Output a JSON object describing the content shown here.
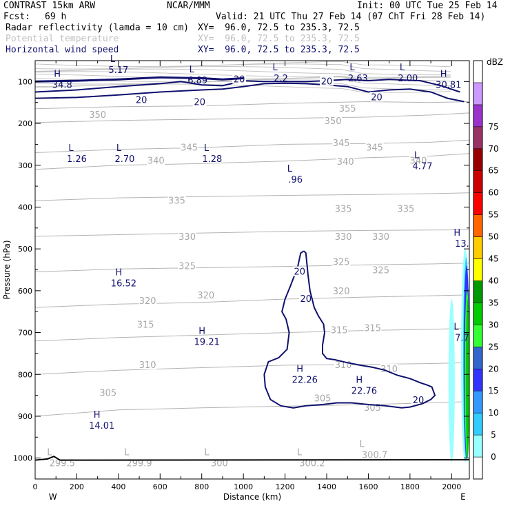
{
  "header": {
    "model": "CONTRAST 15km ARW",
    "org": "NCAR/MMM",
    "init": "Init: 00 UTC Tue 25 Feb 14",
    "fcst_label": "Fcst:",
    "fcst_value": "69 h",
    "valid": "Valid: 21 UTC Thu 27 Feb 14 (07 ChT Fri 28 Feb 14)",
    "fields": [
      {
        "name": "Radar reflectivity (lamda = 10 cm)",
        "xy": "XY=  96.0, 72.5 to 235.3, 72.5",
        "color": "#000000"
      },
      {
        "name": "Potential temperature",
        "xy": "XY=  96.0, 72.5 to 235.3, 72.5",
        "color": "#c0c0c0"
      },
      {
        "name": "Horizontal wind speed",
        "xy": "XY=  96.0, 72.5 to 235.3, 72.5",
        "color": "#10106e"
      }
    ]
  },
  "chart_data": {
    "type": "contour-cross-section",
    "xlabel": "Distance (km)",
    "ylabel": "Pressure (hPa)",
    "xlim": [
      0,
      2085
    ],
    "ylim": [
      1050,
      50
    ],
    "x_ticks": [
      0,
      200,
      400,
      600,
      800,
      1000,
      1200,
      1400,
      1600,
      1800,
      2000
    ],
    "y_ticks": [
      100,
      200,
      300,
      400,
      500,
      600,
      700,
      800,
      900,
      1000
    ],
    "endpoint_left": "W",
    "endpoint_right": "E",
    "colorbar": {
      "title": "dBZ",
      "levels": [
        "0",
        "5",
        "10",
        "15",
        "20",
        "25",
        "30",
        "35",
        "40",
        "45",
        "50",
        "55",
        "60",
        "65",
        "70",
        "75"
      ],
      "colors": [
        "#ffffff",
        "#99ffff",
        "#33ccff",
        "#3399ff",
        "#3333ff",
        "#3366cc",
        "#33ff33",
        "#00cc00",
        "#009900",
        "#ffff00",
        "#ffcc00",
        "#ff6600",
        "#ff0000",
        "#cc0000",
        "#990000",
        "#993366",
        "#9933cc",
        "#cc99ff",
        "#ffffff"
      ]
    },
    "theta_isentropes": [
      {
        "label": "355",
        "pts": [
          [
            0,
            165
          ],
          [
            400,
            160
          ],
          [
            800,
            158
          ],
          [
            1200,
            152
          ],
          [
            1600,
            148
          ],
          [
            1900,
            150
          ],
          [
            2085,
            148
          ]
        ],
        "label_at": [
          1500,
          165
        ]
      },
      {
        "label": "350",
        "pts": [
          [
            0,
            198
          ],
          [
            400,
            193
          ],
          [
            800,
            190
          ],
          [
            1200,
            188
          ],
          [
            1600,
            185
          ],
          [
            1900,
            180
          ],
          [
            2085,
            175
          ]
        ],
        "label_at": [
          300,
          180
        ]
      },
      {
        "label": "350",
        "pts": [],
        "label_at": [
          1430,
          195
        ]
      },
      {
        "label": "345",
        "pts": [
          [
            0,
            270
          ],
          [
            400,
            262
          ],
          [
            800,
            258
          ],
          [
            1200,
            250
          ],
          [
            1600,
            248
          ],
          [
            1900,
            245
          ],
          [
            2085,
            240
          ]
        ],
        "label_at": [
          740,
          258
        ]
      },
      {
        "label": "345",
        "pts": [],
        "label_at": [
          1470,
          248
        ]
      },
      {
        "label": "345",
        "pts": [],
        "label_at": [
          1630,
          258
        ]
      },
      {
        "label": "340",
        "pts": [
          [
            0,
            310
          ],
          [
            400,
            300
          ],
          [
            800,
            296
          ],
          [
            1200,
            290
          ],
          [
            1600,
            282
          ],
          [
            1900,
            278
          ],
          [
            2085,
            272
          ]
        ],
        "label_at": [
          580,
          290
        ]
      },
      {
        "label": "340",
        "pts": [],
        "label_at": [
          1490,
          292
        ]
      },
      {
        "label": "340",
        "pts": [],
        "label_at": [
          1840,
          290
        ]
      },
      {
        "label": "335",
        "pts": [
          [
            0,
            385
          ],
          [
            400,
            378
          ],
          [
            800,
            375
          ],
          [
            1200,
            372
          ],
          [
            1600,
            370
          ],
          [
            1900,
            368
          ],
          [
            2085,
            366
          ]
        ],
        "label_at": [
          680,
          385
        ]
      },
      {
        "label": "335",
        "pts": [],
        "label_at": [
          1480,
          405
        ]
      },
      {
        "label": "335",
        "pts": [],
        "label_at": [
          1780,
          405
        ]
      },
      {
        "label": "330",
        "pts": [
          [
            0,
            470
          ],
          [
            400,
            466
          ],
          [
            800,
            462
          ],
          [
            1200,
            458
          ],
          [
            1600,
            456
          ],
          [
            1900,
            455
          ],
          [
            2085,
            454
          ]
        ],
        "label_at": [
          730,
          472
        ]
      },
      {
        "label": "330",
        "pts": [],
        "label_at": [
          1480,
          472
        ]
      },
      {
        "label": "330",
        "pts": [],
        "label_at": [
          1660,
          472
        ]
      },
      {
        "label": "325",
        "pts": [
          [
            0,
            555
          ],
          [
            400,
            548
          ],
          [
            800,
            545
          ],
          [
            1200,
            542
          ],
          [
            1600,
            538
          ],
          [
            1900,
            536
          ],
          [
            2085,
            534
          ]
        ],
        "label_at": [
          730,
          542
        ]
      },
      {
        "label": "325",
        "pts": [],
        "label_at": [
          1470,
          532
        ]
      },
      {
        "label": "325",
        "pts": [],
        "label_at": [
          1660,
          552
        ]
      },
      {
        "label": "320",
        "pts": [
          [
            0,
            640
          ],
          [
            400,
            632
          ],
          [
            800,
            628
          ],
          [
            1200,
            620
          ],
          [
            1600,
            615
          ],
          [
            1900,
            612
          ],
          [
            2085,
            610
          ]
        ],
        "label_at": [
          540,
          625
        ]
      },
      {
        "label": "320",
        "pts": [],
        "label_at": [
          820,
          612
        ]
      },
      {
        "label": "320",
        "pts": [],
        "label_at": [
          1470,
          602
        ]
      },
      {
        "label": "315",
        "pts": [
          [
            0,
            720
          ],
          [
            400,
            712
          ],
          [
            800,
            706
          ],
          [
            1200,
            700
          ],
          [
            1600,
            695
          ],
          [
            1900,
            692
          ],
          [
            2085,
            690
          ]
        ],
        "label_at": [
          530,
          682
        ]
      },
      {
        "label": "315",
        "pts": [],
        "label_at": [
          1460,
          695
        ]
      },
      {
        "label": "315",
        "pts": [],
        "label_at": [
          1620,
          690
        ]
      },
      {
        "label": "310",
        "pts": [
          [
            0,
            800
          ],
          [
            400,
            790
          ],
          [
            800,
            784
          ],
          [
            1200,
            778
          ],
          [
            1600,
            776
          ],
          [
            1900,
            774
          ],
          [
            2085,
            772
          ]
        ],
        "label_at": [
          540,
          778
        ]
      },
      {
        "label": "310",
        "pts": [],
        "label_at": [
          1480,
          778
        ]
      },
      {
        "label": "310",
        "pts": [],
        "label_at": [
          1700,
          788
        ]
      },
      {
        "label": "305",
        "pts": [
          [
            0,
            900
          ],
          [
            400,
            885
          ],
          [
            800,
            880
          ],
          [
            1200,
            876
          ],
          [
            1600,
            872
          ],
          [
            1900,
            868
          ],
          [
            2085,
            865
          ]
        ],
        "label_at": [
          350,
          845
        ]
      },
      {
        "label": "305",
        "pts": [],
        "label_at": [
          1380,
          858
        ]
      },
      {
        "label": "305",
        "pts": [],
        "label_at": [
          1620,
          880
        ]
      }
    ],
    "theta_extrema": [
      {
        "label": "L",
        "value": "299.5",
        "x": 130,
        "p": 1000
      },
      {
        "label": "L",
        "value": "299.9",
        "x": 500,
        "p": 1000
      },
      {
        "label": "L",
        "value": "300",
        "x": 885,
        "p": 1000
      },
      {
        "label": "L",
        "value": "300.2",
        "x": 1330,
        "p": 1000
      },
      {
        "label": "L",
        "value": "300.7",
        "x": 1630,
        "p": 980
      }
    ],
    "wind_extrema": [
      {
        "label": "H",
        "value": "34.8",
        "x": 130,
        "p": 95
      },
      {
        "label": "L",
        "value": "5.17",
        "x": 400,
        "p": 60
      },
      {
        "label": "L",
        "value": "6.89",
        "x": 780,
        "p": 85
      },
      {
        "label": "L",
        "value": "2.2",
        "x": 1180,
        "p": 80
      },
      {
        "label": "L",
        "value": "2.63",
        "x": 1550,
        "p": 80
      },
      {
        "label": "L",
        "value": "2.00",
        "x": 1790,
        "p": 80
      },
      {
        "label": "H",
        "value": "30.81",
        "x": 1985,
        "p": 95
      },
      {
        "label": "L",
        "value": "1.26",
        "x": 200,
        "p": 272
      },
      {
        "label": "L",
        "value": "2.70",
        "x": 430,
        "p": 272
      },
      {
        "label": "L",
        "value": "1.28",
        "x": 850,
        "p": 272
      },
      {
        "label": "L",
        "value": ".96",
        "x": 1250,
        "p": 322
      },
      {
        "label": "L",
        "value": "4.77",
        "x": 1860,
        "p": 290
      },
      {
        "label": "H",
        "value": "13.",
        "x": 2050,
        "p": 475
      },
      {
        "label": "H",
        "value": "16.52",
        "x": 425,
        "p": 570
      },
      {
        "label": "H",
        "value": "19.21",
        "x": 825,
        "p": 710
      },
      {
        "label": "H",
        "value": "22.26",
        "x": 1295,
        "p": 800
      },
      {
        "label": "H",
        "value": "22.76",
        "x": 1580,
        "p": 827
      },
      {
        "label": "H",
        "value": "14.01",
        "x": 320,
        "p": 910
      },
      {
        "label": "L",
        "value": "7.7",
        "x": 2050,
        "p": 700
      }
    ],
    "wind_contours": [
      {
        "level": "20",
        "pts": [
          [
            1290,
            505
          ],
          [
            1275,
            510
          ],
          [
            1260,
            545
          ],
          [
            1240,
            570
          ],
          [
            1225,
            590
          ],
          [
            1200,
            620
          ],
          [
            1185,
            650
          ],
          [
            1205,
            668
          ],
          [
            1220,
            700
          ],
          [
            1210,
            740
          ],
          [
            1170,
            760
          ],
          [
            1120,
            770
          ],
          [
            1100,
            800
          ],
          [
            1105,
            830
          ],
          [
            1130,
            860
          ],
          [
            1180,
            875
          ],
          [
            1240,
            880
          ],
          [
            1300,
            875
          ],
          [
            1380,
            872
          ],
          [
            1450,
            868
          ],
          [
            1520,
            868
          ],
          [
            1600,
            872
          ],
          [
            1680,
            875
          ],
          [
            1760,
            880
          ],
          [
            1800,
            878
          ]
        ],
        "labels": [
          [
            1270,
            555
          ],
          [
            1300,
            620
          ],
          [
            1840,
            862
          ]
        ]
      },
      {
        "level": "20",
        "pts": [
          [
            1800,
            878
          ],
          [
            1860,
            870
          ],
          [
            1900,
            860
          ],
          [
            1920,
            850
          ],
          [
            1905,
            830
          ],
          [
            1880,
            825
          ],
          [
            1850,
            820
          ],
          [
            1800,
            810
          ],
          [
            1740,
            802
          ],
          [
            1680,
            790
          ],
          [
            1620,
            783
          ],
          [
            1560,
            778
          ],
          [
            1500,
            772
          ],
          [
            1440,
            765
          ],
          [
            1400,
            762
          ],
          [
            1380,
            750
          ],
          [
            1380,
            730
          ],
          [
            1390,
            700
          ],
          [
            1385,
            680
          ],
          [
            1360,
            660
          ],
          [
            1340,
            640
          ],
          [
            1330,
            620
          ],
          [
            1320,
            600
          ],
          [
            1310,
            560
          ],
          [
            1300,
            510
          ],
          [
            1290,
            505
          ]
        ],
        "labels": []
      },
      {
        "level": "20",
        "pts": [
          [
            0,
            140
          ],
          [
            200,
            138
          ],
          [
            400,
            132
          ],
          [
            600,
            125
          ],
          [
            800,
            120
          ],
          [
            900,
            118
          ],
          [
            1000,
            112
          ],
          [
            1100,
            105
          ],
          [
            1200,
            104
          ],
          [
            1300,
            105
          ],
          [
            1400,
            108
          ],
          [
            1500,
            112
          ],
          [
            1600,
            125
          ],
          [
            1700,
            120
          ],
          [
            1800,
            118
          ],
          [
            1900,
            125
          ],
          [
            1980,
            140
          ],
          [
            2060,
            148
          ]
        ],
        "labels": [
          [
            510,
            145
          ],
          [
            790,
            150
          ]
        ]
      },
      {
        "level": "20",
        "pts": [
          [
            0,
            125
          ],
          [
            200,
            120
          ],
          [
            400,
            112
          ],
          [
            600,
            105
          ],
          [
            700,
            100
          ],
          [
            800,
            108
          ],
          [
            900,
            110
          ],
          [
            1000,
            98
          ],
          [
            1100,
            100
          ],
          [
            1300,
            100
          ],
          [
            1400,
            98
          ],
          [
            1500,
            95
          ],
          [
            1600,
            98
          ],
          [
            1700,
            95
          ],
          [
            1850,
            98
          ],
          [
            1950,
            110
          ],
          [
            2040,
            125
          ]
        ],
        "labels": [
          [
            980,
            95
          ],
          [
            1400,
            100
          ],
          [
            1640,
            138
          ]
        ]
      }
    ]
  }
}
